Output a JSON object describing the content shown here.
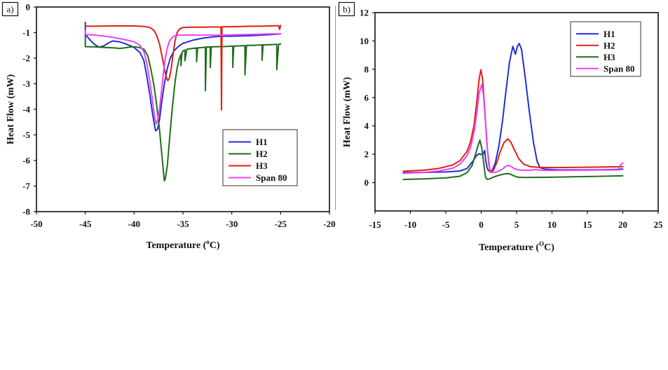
{
  "chart_data": [
    {
      "type": "line",
      "panel_label": "a)",
      "title": "",
      "xlabel": "Temperature (",
      "xlabel_sup": "o",
      "xlabel_end": "C)",
      "ylabel": "Heat Flow (mW)",
      "xlim": [
        -50,
        -20
      ],
      "ylim": [
        -8,
        0
      ],
      "xticks": [
        -50,
        -45,
        -40,
        -35,
        -30,
        -25,
        -20
      ],
      "yticks": [
        0,
        -1,
        -2,
        -3,
        -4,
        -5,
        -6,
        -7,
        -8
      ],
      "grid": false,
      "legend_position": "lower-right",
      "series": [
        {
          "name": "H1",
          "color": "#1f2fd6",
          "x": [
            -45,
            -45,
            -44.6,
            -44.1,
            -43.6,
            -43.1,
            -42.6,
            -42.2,
            -41.5,
            -40.8,
            -40,
            -39.4,
            -39,
            -38.7,
            -38.4,
            -38.1,
            -37.9,
            -37.8,
            -37.6,
            -37.4,
            -37.2,
            -36.9,
            -36.6,
            -36.3,
            -35.9,
            -35.4,
            -35,
            -34,
            -33,
            -32,
            -31,
            -30,
            -29,
            -28,
            -27,
            -26,
            -25
          ],
          "y": [
            -0.6,
            -1.07,
            -1.25,
            -1.45,
            -1.57,
            -1.52,
            -1.4,
            -1.33,
            -1.36,
            -1.45,
            -1.58,
            -1.78,
            -2.1,
            -2.7,
            -3.4,
            -4.2,
            -4.65,
            -4.84,
            -4.78,
            -4.4,
            -3.8,
            -3.0,
            -2.4,
            -2.0,
            -1.7,
            -1.52,
            -1.42,
            -1.3,
            -1.22,
            -1.17,
            -1.14,
            -1.14,
            -1.13,
            -1.12,
            -1.1,
            -1.08,
            -1.05
          ]
        },
        {
          "name": "H2",
          "color": "#1e6e1a",
          "x": [
            -45,
            -45,
            -44,
            -43,
            -42,
            -41.5,
            -41,
            -40.5,
            -40,
            -39.5,
            -39,
            -38.6,
            -38.3,
            -38,
            -37.7,
            -37.4,
            -37.2,
            -37,
            -36.9,
            -36.8,
            -36.6,
            -36.4,
            -36.2,
            -36,
            -35.8,
            -35.6,
            -35.4,
            -35.2,
            -35.2,
            -35.1,
            -35,
            -34.8,
            -34.8,
            -34.6,
            -34,
            -33.6,
            -33.6,
            -33.5,
            -33,
            -32.7,
            -32.7,
            -32.6,
            -32.2,
            -32.2,
            -32.1,
            -31.5,
            -31,
            -30.5,
            -29.9,
            -29.9,
            -29.8,
            -29.2,
            -28.65,
            -28.65,
            -28.5,
            -27.8,
            -26.9,
            -26.9,
            -26.8,
            -26,
            -25.4,
            -25.4,
            -25.2,
            -25
          ],
          "y": [
            -1.1,
            -1.55,
            -1.56,
            -1.58,
            -1.6,
            -1.62,
            -1.6,
            -1.57,
            -1.55,
            -1.58,
            -1.65,
            -1.9,
            -2.4,
            -3.0,
            -3.8,
            -4.8,
            -5.6,
            -6.4,
            -6.8,
            -6.7,
            -6.2,
            -5.3,
            -4.4,
            -3.6,
            -2.9,
            -2.4,
            -2.05,
            -1.85,
            -2.3,
            -1.8,
            -1.72,
            -1.68,
            -2.1,
            -1.65,
            -1.62,
            -1.6,
            -2.14,
            -1.6,
            -1.58,
            -1.57,
            -3.27,
            -1.57,
            -1.56,
            -2.37,
            -1.56,
            -1.55,
            -1.55,
            -1.54,
            -1.53,
            -2.36,
            -1.53,
            -1.52,
            -1.51,
            -2.65,
            -1.5,
            -1.5,
            -1.48,
            -2.08,
            -1.48,
            -1.47,
            -1.46,
            -2.45,
            -1.45,
            -1.45
          ]
        },
        {
          "name": "H3",
          "color": "#e02010",
          "x": [
            -45,
            -44,
            -42,
            -40,
            -39,
            -38.4,
            -38,
            -37.7,
            -37.4,
            -37.1,
            -36.9,
            -36.7,
            -36.55,
            -36.4,
            -36.2,
            -36,
            -35.8,
            -35.6,
            -35.4,
            -35.2,
            -35,
            -34,
            -33,
            -32,
            -31.1,
            -31.05,
            -31,
            -30.9,
            -30,
            -29,
            -28,
            -27,
            -26,
            -25.2,
            -25.1,
            -25
          ],
          "y": [
            -0.75,
            -0.75,
            -0.74,
            -0.74,
            -0.76,
            -0.8,
            -0.9,
            -1.1,
            -1.45,
            -2.0,
            -2.4,
            -2.75,
            -2.88,
            -2.8,
            -2.4,
            -1.8,
            -1.3,
            -1.0,
            -0.88,
            -0.83,
            -0.8,
            -0.79,
            -0.79,
            -0.78,
            -0.78,
            -4.02,
            -0.78,
            -0.77,
            -0.77,
            -0.76,
            -0.75,
            -0.75,
            -0.74,
            -0.73,
            -0.88,
            -0.72
          ]
        },
        {
          "name": "Span 80",
          "color": "#f040f0",
          "x": [
            -45,
            -45,
            -44,
            -43,
            -42,
            -41,
            -40,
            -39.4,
            -39,
            -38.7,
            -38.4,
            -38.1,
            -37.9,
            -37.75,
            -37.6,
            -37.4,
            -37.2,
            -37,
            -36.8,
            -36.6,
            -36.4,
            -36.1,
            -35.8,
            -35.5,
            -35,
            -34,
            -33,
            -32,
            -31,
            -30,
            -29,
            -28,
            -27,
            -26,
            -25
          ],
          "y": [
            -0.9,
            -1.07,
            -1.1,
            -1.14,
            -1.2,
            -1.27,
            -1.36,
            -1.5,
            -1.75,
            -2.2,
            -2.9,
            -3.7,
            -4.3,
            -4.57,
            -4.45,
            -4.0,
            -3.3,
            -2.6,
            -2.0,
            -1.6,
            -1.35,
            -1.18,
            -1.12,
            -1.1,
            -1.1,
            -1.1,
            -1.1,
            -1.1,
            -1.1,
            -1.09,
            -1.08,
            -1.07,
            -1.06,
            -1.05,
            -1.05
          ]
        }
      ]
    },
    {
      "type": "line",
      "panel_label": "b)",
      "title": "",
      "xlabel": "Temperature (",
      "xlabel_sup": "O",
      "xlabel_end": "C)",
      "ylabel": "Heat Flow (mW)",
      "xlim": [
        -15,
        25
      ],
      "ylim": [
        -2,
        12
      ],
      "xticks": [
        -15,
        -10,
        -5,
        0,
        5,
        10,
        15,
        20,
        25
      ],
      "yticks": [
        0,
        2,
        4,
        6,
        8,
        10,
        12
      ],
      "grid": false,
      "legend_position": "top-right",
      "series": [
        {
          "name": "H1",
          "color": "#1f2fd6",
          "x": [
            -11,
            -8,
            -5,
            -3,
            -2,
            -1.2,
            -0.6,
            -0.3,
            0,
            0.3,
            0.5,
            0.6,
            0.8,
            1.0,
            1.3,
            1.6,
            2.0,
            2.5,
            3.0,
            3.5,
            4.0,
            4.47,
            4.83,
            5.1,
            5.37,
            5.7,
            6.2,
            6.8,
            7.4,
            7.9,
            8.3,
            9,
            10,
            11,
            13,
            15,
            17,
            19,
            20
          ],
          "y": [
            0.7,
            0.72,
            0.75,
            0.82,
            1.0,
            1.5,
            1.95,
            2.03,
            1.98,
            2.02,
            2.28,
            1.7,
            1.1,
            0.85,
            0.78,
            0.9,
            1.4,
            2.6,
            4.3,
            6.5,
            8.5,
            9.62,
            9.06,
            9.6,
            9.82,
            9.4,
            7.5,
            5.0,
            2.8,
            1.5,
            1.05,
            0.95,
            0.92,
            0.9,
            0.9,
            0.9,
            0.91,
            0.93,
            0.95
          ]
        },
        {
          "name": "H2",
          "color": "#e02010",
          "x": [
            -11,
            -8,
            -6,
            -4,
            -3,
            -2,
            -1.5,
            -1,
            -0.6,
            -0.3,
            -0.05,
            0.2,
            0.5,
            0.8,
            1.1,
            1.33,
            1.7,
            2.2,
            2.7,
            3.2,
            3.75,
            4.2,
            4.7,
            5.3,
            6,
            7,
            8,
            10,
            13,
            16,
            20
          ],
          "y": [
            0.8,
            0.88,
            1.0,
            1.25,
            1.55,
            2.2,
            2.9,
            4.1,
            5.8,
            7.3,
            7.97,
            7.3,
            5.2,
            2.8,
            1.2,
            0.72,
            0.85,
            1.4,
            2.2,
            2.8,
            3.09,
            2.85,
            2.3,
            1.7,
            1.3,
            1.12,
            1.08,
            1.06,
            1.07,
            1.09,
            1.12
          ]
        },
        {
          "name": "H3",
          "color": "#1e6e1a",
          "x": [
            -11,
            -8,
            -5,
            -3,
            -2,
            -1.3,
            -0.8,
            -0.4,
            -0.18,
            0.1,
            0.4,
            0.6,
            0.84,
            1.2,
            1.8,
            2.5,
            3.2,
            3.65,
            4.1,
            4.6,
            5.2,
            6,
            8,
            10,
            13,
            16,
            20
          ],
          "y": [
            0.22,
            0.26,
            0.33,
            0.45,
            0.7,
            1.2,
            2.0,
            2.7,
            3.0,
            2.4,
            1.2,
            0.4,
            0.23,
            0.26,
            0.4,
            0.52,
            0.6,
            0.63,
            0.6,
            0.48,
            0.38,
            0.36,
            0.37,
            0.38,
            0.41,
            0.44,
            0.48
          ]
        },
        {
          "name": "Span 80",
          "color": "#f040f0",
          "x": [
            -11,
            -8,
            -6,
            -4,
            -3,
            -2,
            -1.5,
            -1,
            -0.6,
            -0.3,
            0.05,
            0.3,
            0.6,
            0.9,
            1.2,
            1.5,
            2.0,
            2.5,
            3.0,
            3.4,
            3.8,
            4.2,
            4.7,
            5.3,
            6,
            7,
            7.7,
            8.5,
            10,
            13,
            16,
            19.4,
            19.6,
            19.8,
            20
          ],
          "y": [
            0.65,
            0.72,
            0.82,
            1.02,
            1.3,
            1.9,
            2.5,
            3.6,
            5.0,
            6.3,
            6.9,
            6.3,
            4.3,
            2.2,
            1.0,
            0.72,
            0.73,
            0.82,
            0.95,
            1.12,
            1.22,
            1.15,
            0.98,
            0.9,
            0.87,
            0.87,
            0.92,
            0.87,
            0.86,
            0.87,
            0.88,
            0.9,
            1.2,
            1.3,
            1.38
          ]
        }
      ]
    }
  ]
}
